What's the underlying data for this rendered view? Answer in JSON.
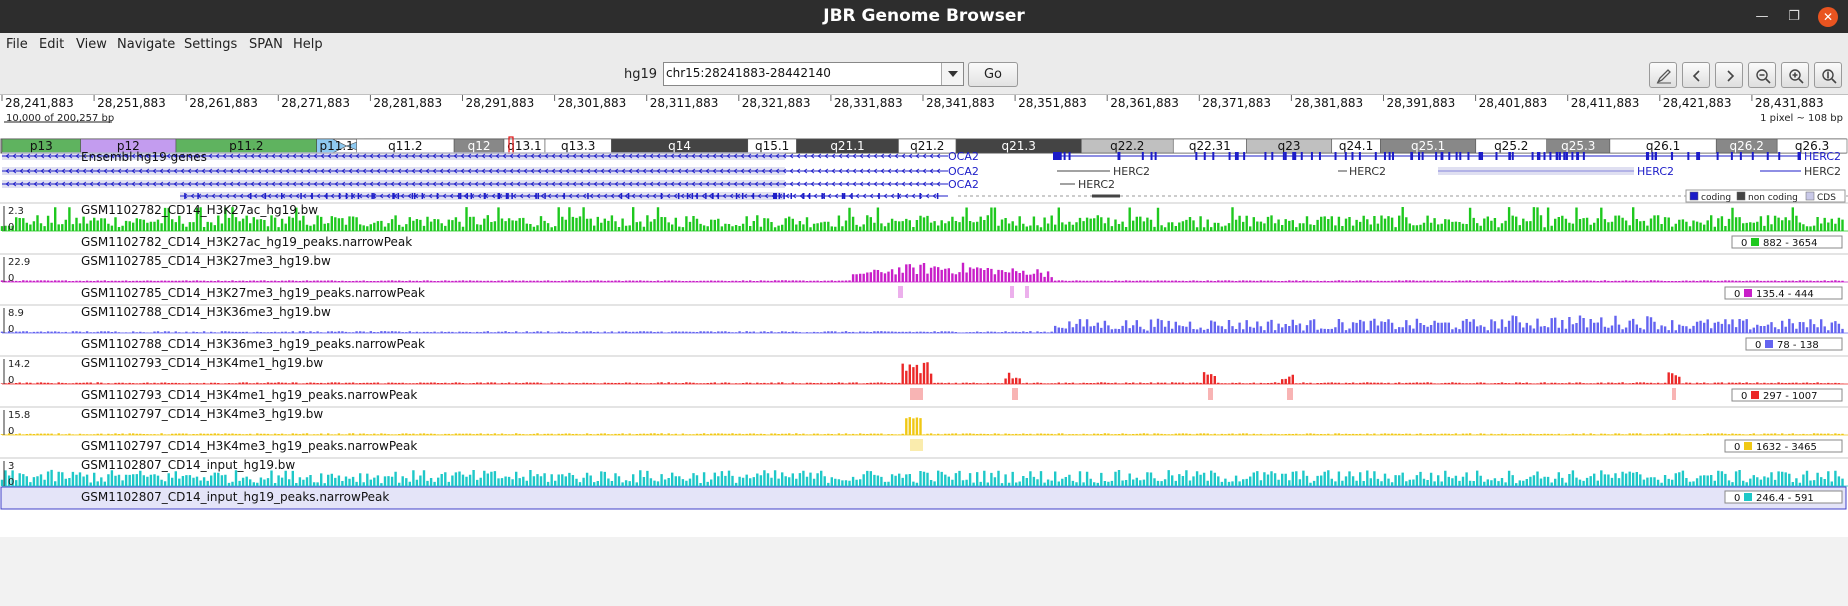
{
  "window": {
    "title": "JBR Genome Browser"
  },
  "menu": [
    "File",
    "Edit",
    "View",
    "Navigate",
    "Settings",
    "SPAN",
    "Help"
  ],
  "toolbar": {
    "genome": "hg19",
    "locus": "chr15:28241883-28442140",
    "go_label": "Go",
    "buttons": [
      "edit-icon",
      "back-icon",
      "forward-icon",
      "zoom-out-icon",
      "zoom-in-icon",
      "fit-icon"
    ]
  },
  "ruler": {
    "ticks": [
      "28,241,883",
      "28,251,883",
      "28,261,883",
      "28,271,883",
      "28,281,883",
      "28,291,883",
      "28,301,883",
      "28,311,883",
      "28,321,883",
      "28,331,883",
      "28,341,883",
      "28,351,883",
      "28,361,883",
      "28,371,883",
      "28,381,883",
      "28,391,883",
      "28,401,883",
      "28,411,883",
      "28,421,883",
      "28,431,883"
    ],
    "range_text": "10,000 of 200,257 bp",
    "scale_text": "1 pixel ~ 108 bp"
  },
  "ideogram": {
    "bands": [
      {
        "label": "p13",
        "stain": "gvar"
      },
      {
        "label": "p12",
        "stain": "stalk"
      },
      {
        "label": "p11.2",
        "stain": "gvar"
      },
      {
        "label": "p11.1",
        "stain": "acen"
      },
      {
        "label": "q11.2",
        "stain": "gneg"
      },
      {
        "label": "q12",
        "stain": "gpos50"
      },
      {
        "label": "q13.1",
        "stain": "gneg"
      },
      {
        "label": "q13.3",
        "stain": "gneg"
      },
      {
        "label": "q14",
        "stain": "gpos75"
      },
      {
        "label": "q15.1",
        "stain": "gneg"
      },
      {
        "label": "q21.1",
        "stain": "gpos75"
      },
      {
        "label": "q21.2",
        "stain": "gneg"
      },
      {
        "label": "q21.3",
        "stain": "gpos75"
      },
      {
        "label": "q22.2",
        "stain": "gpos25"
      },
      {
        "label": "q22.31",
        "stain": "gneg"
      },
      {
        "label": "q23",
        "stain": "gpos25"
      },
      {
        "label": "q24.1",
        "stain": "gneg"
      },
      {
        "label": "q25.1",
        "stain": "gpos50"
      },
      {
        "label": "q25.2",
        "stain": "gneg"
      },
      {
        "label": "q25.3",
        "stain": "gpos50"
      },
      {
        "label": "q26.1",
        "stain": "gneg"
      },
      {
        "label": "q26.2",
        "stain": "gpos50"
      },
      {
        "label": "q26.3",
        "stain": "gneg"
      }
    ],
    "legend": [
      "gvar",
      "stalk",
      "acen",
      "gneg",
      "gpos50",
      "gpos75",
      "gpos25"
    ]
  },
  "genes": {
    "track_name": "Ensembl hg19 genes",
    "labels": [
      "OCA2",
      "OCA2",
      "OCA2",
      "HERC2",
      "HERC2",
      "HERC2",
      "HERC2",
      "HERC2",
      "HERC2",
      "HERC2"
    ],
    "legend": [
      "coding",
      "non coding",
      "CDS"
    ]
  },
  "colors": {
    "ideogram": {
      "gvar": "#5fb35f",
      "stalk": "#c39cef",
      "acen": "#8ec9f0",
      "gneg": "#ffffff",
      "gpos50": "#888888",
      "gpos75": "#444444",
      "gpos25": "#c0c0c0"
    },
    "genes": {
      "coding": "#1c1cc8",
      "non coding": "#444444",
      "CDS": "#c9c9e8"
    }
  },
  "tracks": [
    {
      "name": "GSM1102782_CD14_H3K27ac_hg19.bw",
      "max": "2.3",
      "min": "0",
      "color": "#1ec81e",
      "peaks_name": "GSM1102782_CD14_H3K27ac_hg19_peaks.narrowPeak",
      "peaks_min": "0",
      "peaks_range": "882 - 3654"
    },
    {
      "name": "GSM1102785_CD14_H3K27me3_hg19.bw",
      "max": "22.9",
      "min": "0",
      "color": "#c81ec8",
      "peaks_name": "GSM1102785_CD14_H3K27me3_hg19_peaks.narrowPeak",
      "peaks_min": "0",
      "peaks_range": "135.4 - 444"
    },
    {
      "name": "GSM1102788_CD14_H3K36me3_hg19.bw",
      "max": "8.9",
      "min": "0",
      "color": "#6464f0",
      "peaks_name": "GSM1102788_CD14_H3K36me3_hg19_peaks.narrowPeak",
      "peaks_min": "0",
      "peaks_range": "78 - 138"
    },
    {
      "name": "GSM1102793_CD14_H3K4me1_hg19.bw",
      "max": "14.2",
      "min": "0",
      "color": "#eb2828",
      "peaks_name": "GSM1102793_CD14_H3K4me1_hg19_peaks.narrowPeak",
      "peaks_min": "0",
      "peaks_range": "297 - 1007"
    },
    {
      "name": "GSM1102797_CD14_H3K4me3_hg19.bw",
      "max": "15.8",
      "min": "0",
      "color": "#f0c814",
      "peaks_name": "GSM1102797_CD14_H3K4me3_hg19_peaks.narrowPeak",
      "peaks_min": "0",
      "peaks_range": "1632 - 3465"
    },
    {
      "name": "GSM1102807_CD14_input_hg19.bw",
      "max": "3",
      "min": "0",
      "color": "#1ec8c8",
      "peaks_name": "GSM1102807_CD14_input_hg19_peaks.narrowPeak",
      "peaks_min": "0",
      "peaks_range": "246.4 - 591"
    }
  ]
}
